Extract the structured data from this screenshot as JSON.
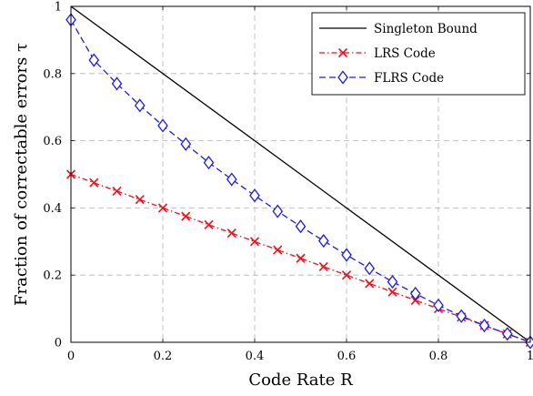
{
  "chart_data": {
    "type": "line",
    "xlabel": "Code Rate R",
    "ylabel": "Fraction of correctable errors τ",
    "xlim": [
      0,
      1
    ],
    "ylim": [
      0,
      1
    ],
    "xticks": [
      0,
      0.2,
      0.4,
      0.6,
      0.8,
      1
    ],
    "yticks": [
      0,
      0.2,
      0.4,
      0.6,
      0.8,
      1
    ],
    "xtick_labels": [
      "0",
      "0.2",
      "0.4",
      "0.6",
      "0.8",
      "1"
    ],
    "ytick_labels": [
      "0",
      "0.2",
      "0.4",
      "0.6",
      "0.8",
      "1"
    ],
    "grid": true,
    "legend_position": "top-right",
    "series": [
      {
        "name": "Singleton Bound",
        "color": "#000000",
        "style": "solid",
        "marker": "none",
        "x": [
          0,
          1
        ],
        "y": [
          1,
          0
        ]
      },
      {
        "name": "LRS Code",
        "color": "#e8101a",
        "style": "dash-dot",
        "marker": "x",
        "x": [
          0,
          0.05,
          0.1,
          0.15,
          0.2,
          0.25,
          0.3,
          0.35,
          0.4,
          0.45,
          0.5,
          0.55,
          0.6,
          0.65,
          0.7,
          0.75,
          0.8,
          0.85,
          0.9,
          0.95,
          1
        ],
        "y": [
          0.5,
          0.475,
          0.45,
          0.425,
          0.4,
          0.375,
          0.35,
          0.325,
          0.3,
          0.275,
          0.25,
          0.225,
          0.2,
          0.175,
          0.15,
          0.125,
          0.1,
          0.075,
          0.05,
          0.025,
          0
        ]
      },
      {
        "name": "FLRS Code",
        "color": "#1a1ae6",
        "style": "dashed",
        "marker": "diamond",
        "x": [
          0,
          0.05,
          0.1,
          0.15,
          0.2,
          0.25,
          0.3,
          0.35,
          0.4,
          0.45,
          0.5,
          0.55,
          0.6,
          0.65,
          0.7,
          0.75,
          0.8,
          0.85,
          0.9,
          0.95,
          1
        ],
        "y": [
          0.96,
          0.84,
          0.77,
          0.705,
          0.645,
          0.59,
          0.535,
          0.485,
          0.437,
          0.39,
          0.345,
          0.302,
          0.26,
          0.22,
          0.18,
          0.145,
          0.11,
          0.078,
          0.05,
          0.025,
          0
        ]
      }
    ]
  }
}
